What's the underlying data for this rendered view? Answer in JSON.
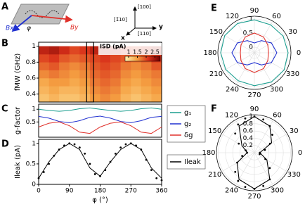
{
  "panel_labels": [
    "A",
    "B",
    "C",
    "D",
    "E",
    "F"
  ],
  "schematic": {
    "bx": "Bx",
    "by": "By",
    "phi": "φ",
    "dir_100": "[100]",
    "dir_1bar10": "[1̄10]",
    "dir_110": "[110]",
    "x": "x",
    "y": "y"
  },
  "chart_data": [
    {
      "type": "heatmap",
      "ylabel": "fMW (GHz)",
      "xlim": [
        0,
        360
      ],
      "ylim": [
        0.3,
        1.05
      ],
      "yticks": [
        0.4,
        0.6,
        0.8,
        1
      ],
      "x": [
        15,
        45,
        75,
        105,
        135,
        165,
        195,
        225,
        255,
        285,
        315,
        345
      ],
      "y": [
        0.35,
        0.45,
        0.55,
        0.65,
        0.75,
        0.85,
        0.95
      ],
      "z": [
        [
          1.2,
          1.3,
          1.2,
          1.2,
          1.3,
          1.5,
          1.6,
          1.5,
          1.3,
          1.2,
          1.3,
          1.4
        ],
        [
          1.3,
          1.4,
          1.3,
          1.3,
          1.4,
          1.6,
          1.7,
          1.6,
          1.4,
          1.3,
          1.4,
          1.5
        ],
        [
          1.4,
          1.5,
          1.5,
          1.4,
          1.5,
          1.7,
          1.8,
          1.7,
          1.5,
          1.4,
          1.5,
          1.6
        ],
        [
          1.6,
          1.7,
          1.6,
          1.5,
          1.6,
          1.8,
          1.9,
          1.8,
          1.6,
          1.5,
          1.6,
          1.7
        ],
        [
          1.8,
          1.9,
          1.7,
          1.6,
          1.7,
          1.9,
          2.0,
          1.9,
          1.7,
          1.6,
          1.7,
          1.9
        ],
        [
          2.0,
          2.1,
          1.9,
          1.8,
          1.9,
          2.0,
          2.1,
          2.0,
          1.9,
          1.8,
          1.9,
          2.1
        ],
        [
          2.3,
          2.4,
          2.2,
          2.0,
          2.1,
          2.3,
          2.4,
          2.3,
          2.1,
          2.0,
          2.2,
          2.4
        ]
      ],
      "zlim": [
        0.8,
        2.8
      ],
      "colormap": [
        "#fff3b0",
        "#f5a142",
        "#d9301a",
        "#6e0000"
      ],
      "colorbar_label": "ISD (pA)",
      "colorbar_ticks": [
        1,
        1.5,
        2,
        2.5
      ]
    },
    {
      "type": "line",
      "ylabel": "g-factor",
      "xlim": [
        0,
        360
      ],
      "ylim": [
        -0.1,
        1.2
      ],
      "yticks": [
        0.5,
        1
      ],
      "legend": "right",
      "series": [
        {
          "name": "g₁",
          "color": "#1a9e8f",
          "x": [
            0,
            30,
            60,
            90,
            120,
            150,
            180,
            210,
            240,
            270,
            300,
            330,
            360
          ],
          "values": [
            1.0,
            0.95,
            0.92,
            0.95,
            1.02,
            1.05,
            1.0,
            0.95,
            0.92,
            0.95,
            1.02,
            1.05,
            1.0
          ]
        },
        {
          "name": "g₂",
          "color": "#2030d0",
          "x": [
            0,
            30,
            60,
            90,
            120,
            150,
            180,
            210,
            240,
            270,
            300,
            330,
            360
          ],
          "values": [
            0.72,
            0.65,
            0.52,
            0.47,
            0.55,
            0.68,
            0.73,
            0.65,
            0.52,
            0.47,
            0.55,
            0.68,
            0.72
          ]
        },
        {
          "name": "δg",
          "color": "#e0302a",
          "x": [
            0,
            30,
            60,
            90,
            120,
            150,
            180,
            210,
            240,
            270,
            300,
            330,
            360
          ],
          "values": [
            0.3,
            0.45,
            0.5,
            0.35,
            0.1,
            0.05,
            0.3,
            0.45,
            0.5,
            0.35,
            0.1,
            0.05,
            0.3
          ]
        }
      ]
    },
    {
      "type": "line",
      "ylabel": "Ileak (pA)",
      "xlabel": "φ (°)",
      "xlim": [
        0,
        360
      ],
      "xticks": [
        0,
        90,
        180,
        270,
        360
      ],
      "ylim": [
        0,
        1.1
      ],
      "yticks": [
        0,
        0.5,
        1
      ],
      "legend": "right",
      "series": [
        {
          "color": "#000000",
          "marker": "dot",
          "x": [
            0,
            15,
            30,
            45,
            60,
            75,
            90,
            105,
            120,
            135,
            150,
            165,
            180,
            195,
            210,
            225,
            240,
            255,
            270,
            285,
            300,
            315,
            330,
            345,
            360
          ],
          "values": [
            0.15,
            0.3,
            0.5,
            0.7,
            0.85,
            0.95,
            1.0,
            0.98,
            0.9,
            0.75,
            0.5,
            0.25,
            0.2,
            0.35,
            0.55,
            0.75,
            0.9,
            0.98,
            1.0,
            0.95,
            0.85,
            0.6,
            0.35,
            0.15,
            0.1
          ]
        },
        {
          "name": "Ileak",
          "color": "#000000",
          "x": [
            0,
            30,
            60,
            90,
            120,
            150,
            180,
            210,
            240,
            270,
            300,
            330,
            360
          ],
          "values": [
            0.15,
            0.55,
            0.85,
            1.0,
            0.85,
            0.4,
            0.2,
            0.55,
            0.85,
            1.0,
            0.85,
            0.4,
            0.15
          ]
        }
      ]
    },
    {
      "type": "polar",
      "rlim": [
        -0.2,
        1.1
      ],
      "rticks": [
        0,
        0.5,
        1
      ],
      "theta_ticks": [
        0,
        30,
        60,
        90,
        120,
        150,
        180,
        210,
        240,
        270,
        300,
        330
      ],
      "series": [
        {
          "color": "#1a9e8f",
          "theta": [
            0,
            30,
            60,
            90,
            120,
            150,
            180,
            210,
            240,
            270,
            300,
            330,
            360
          ],
          "values": [
            1.0,
            0.98,
            0.95,
            0.97,
            1.0,
            1.02,
            1.0,
            0.98,
            0.95,
            0.97,
            1.0,
            1.02,
            1.0
          ]
        },
        {
          "color": "#2030d0",
          "theta": [
            0,
            30,
            60,
            90,
            120,
            150,
            180,
            210,
            240,
            270,
            300,
            330,
            360
          ],
          "values": [
            0.6,
            0.5,
            0.3,
            0.15,
            0.3,
            0.5,
            0.6,
            0.5,
            0.3,
            0.15,
            0.3,
            0.5,
            0.6
          ]
        },
        {
          "color": "#e0302a",
          "theta": [
            0,
            30,
            60,
            90,
            120,
            150,
            180,
            210,
            240,
            270,
            300,
            330,
            360
          ],
          "values": [
            0.3,
            0.35,
            0.45,
            0.5,
            0.45,
            0.35,
            0.3,
            0.35,
            0.45,
            0.5,
            0.45,
            0.35,
            0.3
          ]
        }
      ]
    },
    {
      "type": "polar",
      "rlim": [
        0,
        1.05
      ],
      "rticks": [
        0.2,
        0.4,
        0.6,
        0.8,
        1
      ],
      "theta_ticks": [
        0,
        30,
        60,
        90,
        120,
        150,
        180,
        210,
        240,
        270,
        300,
        330
      ],
      "series": [
        {
          "color": "#000000",
          "marker": "dot",
          "theta": [
            0,
            15,
            30,
            45,
            60,
            75,
            90,
            105,
            120,
            135,
            150,
            165,
            180,
            195,
            210,
            225,
            240,
            255,
            270,
            285,
            300,
            315,
            330,
            345
          ],
          "values": [
            0.15,
            0.3,
            0.5,
            0.7,
            0.85,
            0.95,
            1.0,
            0.98,
            0.9,
            0.75,
            0.5,
            0.25,
            0.2,
            0.35,
            0.55,
            0.75,
            0.9,
            0.98,
            1.0,
            0.95,
            0.85,
            0.6,
            0.35,
            0.15
          ]
        },
        {
          "color": "#000000",
          "theta": [
            0,
            30,
            60,
            90,
            120,
            150,
            180,
            210,
            240,
            270,
            300,
            330,
            360
          ],
          "values": [
            0.15,
            0.55,
            0.85,
            1.0,
            0.85,
            0.4,
            0.2,
            0.55,
            0.85,
            1.0,
            0.85,
            0.4,
            0.15
          ]
        }
      ]
    }
  ]
}
